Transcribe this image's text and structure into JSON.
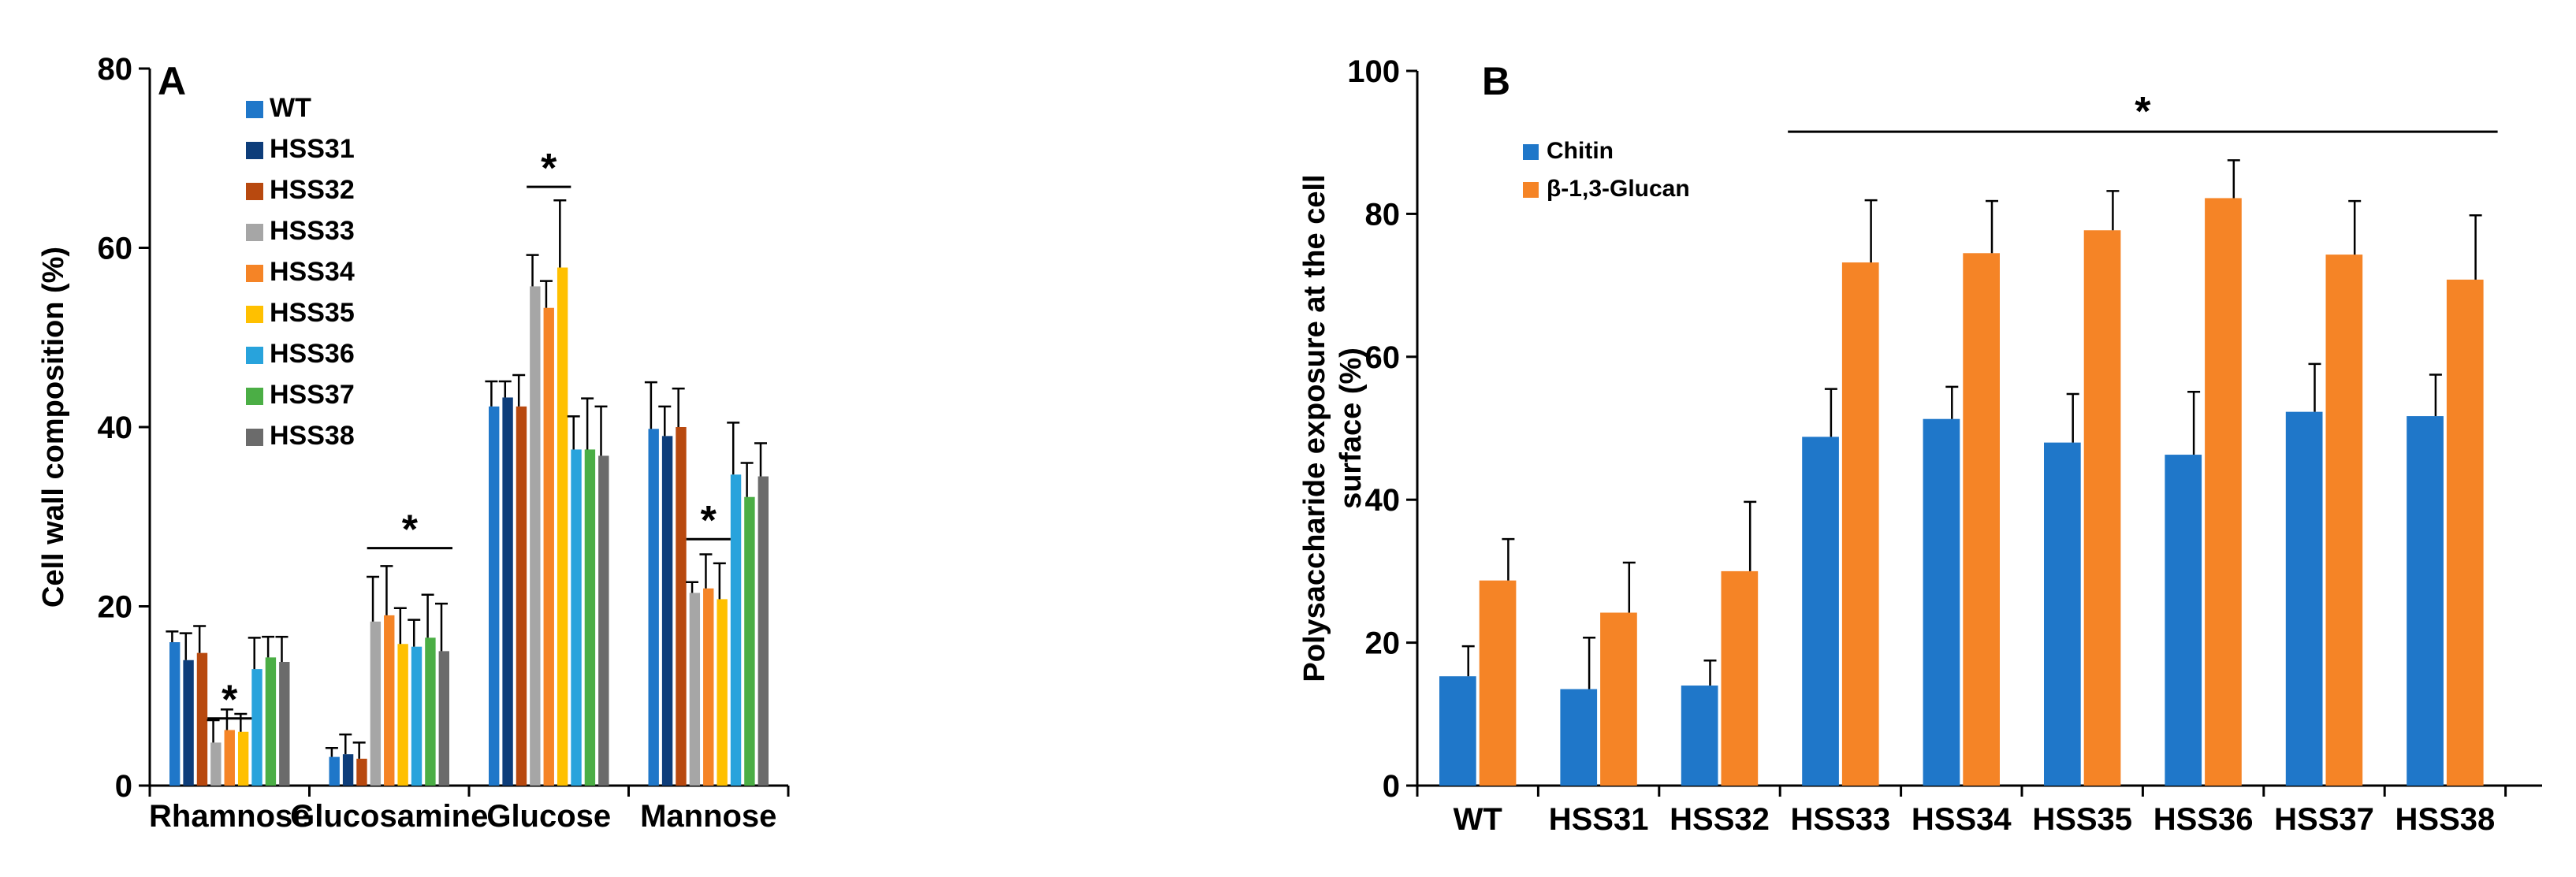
{
  "chart_data": [
    {
      "type": "bar",
      "panel_label": "A",
      "ylabel": "Cell wall composition (%)",
      "ylim": [
        0,
        80
      ],
      "yticks": [
        0,
        20,
        40,
        60,
        80
      ],
      "categories": [
        "Rhamnose",
        "Glucosamine",
        "Glucose",
        "Mannose"
      ],
      "series": [
        {
          "name": "WT",
          "color": "#1f77c9",
          "values": [
            16.0,
            3.2,
            42.3,
            39.8
          ],
          "errors": [
            1.2,
            1.0,
            2.8,
            5.2
          ]
        },
        {
          "name": "HSS31",
          "color": "#0d3d7a",
          "values": [
            14.0,
            3.5,
            43.3,
            39.0
          ],
          "errors": [
            3.0,
            2.2,
            1.8,
            3.3
          ]
        },
        {
          "name": "HSS32",
          "color": "#b8490f",
          "values": [
            14.8,
            3.0,
            42.3,
            40.0
          ],
          "errors": [
            3.0,
            1.8,
            3.5,
            4.3
          ]
        },
        {
          "name": "HSS33",
          "color": "#a6a6a6",
          "values": [
            4.8,
            18.3,
            55.7,
            21.5
          ],
          "errors": [
            2.5,
            5.0,
            3.5,
            1.2
          ]
        },
        {
          "name": "HSS34",
          "color": "#f58426",
          "values": [
            6.2,
            19.0,
            53.3,
            22.0
          ],
          "errors": [
            2.3,
            5.5,
            3.0,
            3.8
          ]
        },
        {
          "name": "HSS35",
          "color": "#ffc000",
          "values": [
            6.0,
            15.8,
            57.8,
            20.8
          ],
          "errors": [
            2.0,
            4.0,
            7.5,
            4.0
          ]
        },
        {
          "name": "HSS36",
          "color": "#28a3dc",
          "values": [
            13.0,
            15.5,
            37.5,
            34.7
          ],
          "errors": [
            3.5,
            3.0,
            3.7,
            5.8
          ]
        },
        {
          "name": "HSS37",
          "color": "#4bae45",
          "values": [
            14.3,
            16.5,
            37.5,
            32.2
          ],
          "errors": [
            2.3,
            4.8,
            5.7,
            3.8
          ]
        },
        {
          "name": "HSS38",
          "color": "#6b6b6b",
          "values": [
            13.8,
            15.0,
            36.8,
            34.5
          ],
          "errors": [
            2.8,
            5.3,
            5.5,
            3.7
          ]
        }
      ],
      "significance": [
        {
          "category": "Rhamnose",
          "from_series": 3,
          "to_series": 5,
          "y": 7.5,
          "label": "*"
        },
        {
          "category": "Glucosamine",
          "from_series": 3,
          "to_series": 8,
          "y": 26.5,
          "label": "*"
        },
        {
          "category": "Glucose",
          "from_series": 3,
          "to_series": 5,
          "y": 66.8,
          "label": "*"
        },
        {
          "category": "Mannose",
          "from_series": 3,
          "to_series": 5,
          "y": 27.5,
          "label": "*"
        }
      ]
    },
    {
      "type": "bar",
      "panel_label": "B",
      "ylabel_line1": "Polysaccharide exposure at the cell",
      "ylabel_line2": "surface (%)",
      "ylim": [
        0,
        100
      ],
      "yticks": [
        0,
        20,
        40,
        60,
        80,
        100
      ],
      "categories": [
        "WT",
        "HSS31",
        "HSS32",
        "HSS33",
        "HSS34",
        "HSS35",
        "HSS36",
        "HSS37",
        "HSS38"
      ],
      "series": [
        {
          "name": "Chitin",
          "color": "#1f77c9",
          "values": [
            15.3,
            13.5,
            14.0,
            48.8,
            51.3,
            48.0,
            46.3,
            52.3,
            51.7
          ],
          "errors": [
            4.2,
            7.2,
            3.5,
            6.7,
            4.5,
            6.8,
            8.8,
            6.7,
            5.8
          ]
        },
        {
          "name": "β-1,3-Glucan",
          "color": "#f58426",
          "values": [
            28.7,
            24.2,
            30.0,
            73.2,
            74.5,
            77.7,
            82.2,
            74.3,
            70.8
          ],
          "errors": [
            5.8,
            7.0,
            9.7,
            8.7,
            7.3,
            5.5,
            5.3,
            7.5,
            9.0
          ]
        }
      ],
      "significance": [
        {
          "from_category": 3,
          "to_category": 8,
          "y": 91.5,
          "label": "*"
        }
      ]
    }
  ]
}
